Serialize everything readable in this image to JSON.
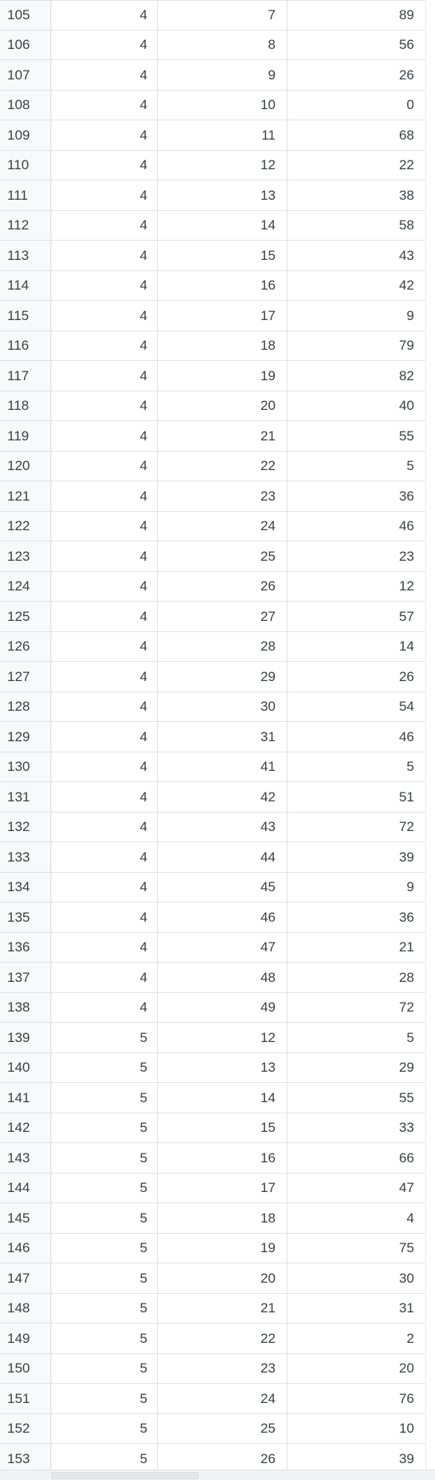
{
  "rows": [
    {
      "row": "105",
      "a": "4",
      "b": "7",
      "c": "89"
    },
    {
      "row": "106",
      "a": "4",
      "b": "8",
      "c": "56"
    },
    {
      "row": "107",
      "a": "4",
      "b": "9",
      "c": "26"
    },
    {
      "row": "108",
      "a": "4",
      "b": "10",
      "c": "0"
    },
    {
      "row": "109",
      "a": "4",
      "b": "11",
      "c": "68"
    },
    {
      "row": "110",
      "a": "4",
      "b": "12",
      "c": "22"
    },
    {
      "row": "111",
      "a": "4",
      "b": "13",
      "c": "38"
    },
    {
      "row": "112",
      "a": "4",
      "b": "14",
      "c": "58"
    },
    {
      "row": "113",
      "a": "4",
      "b": "15",
      "c": "43"
    },
    {
      "row": "114",
      "a": "4",
      "b": "16",
      "c": "42"
    },
    {
      "row": "115",
      "a": "4",
      "b": "17",
      "c": "9"
    },
    {
      "row": "116",
      "a": "4",
      "b": "18",
      "c": "79"
    },
    {
      "row": "117",
      "a": "4",
      "b": "19",
      "c": "82"
    },
    {
      "row": "118",
      "a": "4",
      "b": "20",
      "c": "40"
    },
    {
      "row": "119",
      "a": "4",
      "b": "21",
      "c": "55"
    },
    {
      "row": "120",
      "a": "4",
      "b": "22",
      "c": "5"
    },
    {
      "row": "121",
      "a": "4",
      "b": "23",
      "c": "36"
    },
    {
      "row": "122",
      "a": "4",
      "b": "24",
      "c": "46"
    },
    {
      "row": "123",
      "a": "4",
      "b": "25",
      "c": "23"
    },
    {
      "row": "124",
      "a": "4",
      "b": "26",
      "c": "12"
    },
    {
      "row": "125",
      "a": "4",
      "b": "27",
      "c": "57"
    },
    {
      "row": "126",
      "a": "4",
      "b": "28",
      "c": "14"
    },
    {
      "row": "127",
      "a": "4",
      "b": "29",
      "c": "26"
    },
    {
      "row": "128",
      "a": "4",
      "b": "30",
      "c": "54"
    },
    {
      "row": "129",
      "a": "4",
      "b": "31",
      "c": "46"
    },
    {
      "row": "130",
      "a": "4",
      "b": "41",
      "c": "5"
    },
    {
      "row": "131",
      "a": "4",
      "b": "42",
      "c": "51"
    },
    {
      "row": "132",
      "a": "4",
      "b": "43",
      "c": "72"
    },
    {
      "row": "133",
      "a": "4",
      "b": "44",
      "c": "39"
    },
    {
      "row": "134",
      "a": "4",
      "b": "45",
      "c": "9"
    },
    {
      "row": "135",
      "a": "4",
      "b": "46",
      "c": "36"
    },
    {
      "row": "136",
      "a": "4",
      "b": "47",
      "c": "21"
    },
    {
      "row": "137",
      "a": "4",
      "b": "48",
      "c": "28"
    },
    {
      "row": "138",
      "a": "4",
      "b": "49",
      "c": "72"
    },
    {
      "row": "139",
      "a": "5",
      "b": "12",
      "c": "5"
    },
    {
      "row": "140",
      "a": "5",
      "b": "13",
      "c": "29"
    },
    {
      "row": "141",
      "a": "5",
      "b": "14",
      "c": "55"
    },
    {
      "row": "142",
      "a": "5",
      "b": "15",
      "c": "33"
    },
    {
      "row": "143",
      "a": "5",
      "b": "16",
      "c": "66"
    },
    {
      "row": "144",
      "a": "5",
      "b": "17",
      "c": "47"
    },
    {
      "row": "145",
      "a": "5",
      "b": "18",
      "c": "4"
    },
    {
      "row": "146",
      "a": "5",
      "b": "19",
      "c": "75"
    },
    {
      "row": "147",
      "a": "5",
      "b": "20",
      "c": "30"
    },
    {
      "row": "148",
      "a": "5",
      "b": "21",
      "c": "31"
    },
    {
      "row": "149",
      "a": "5",
      "b": "22",
      "c": "2"
    },
    {
      "row": "150",
      "a": "5",
      "b": "23",
      "c": "20"
    },
    {
      "row": "151",
      "a": "5",
      "b": "24",
      "c": "76"
    },
    {
      "row": "152",
      "a": "5",
      "b": "25",
      "c": "10"
    },
    {
      "row": "153",
      "a": "5",
      "b": "26",
      "c": "39"
    }
  ]
}
